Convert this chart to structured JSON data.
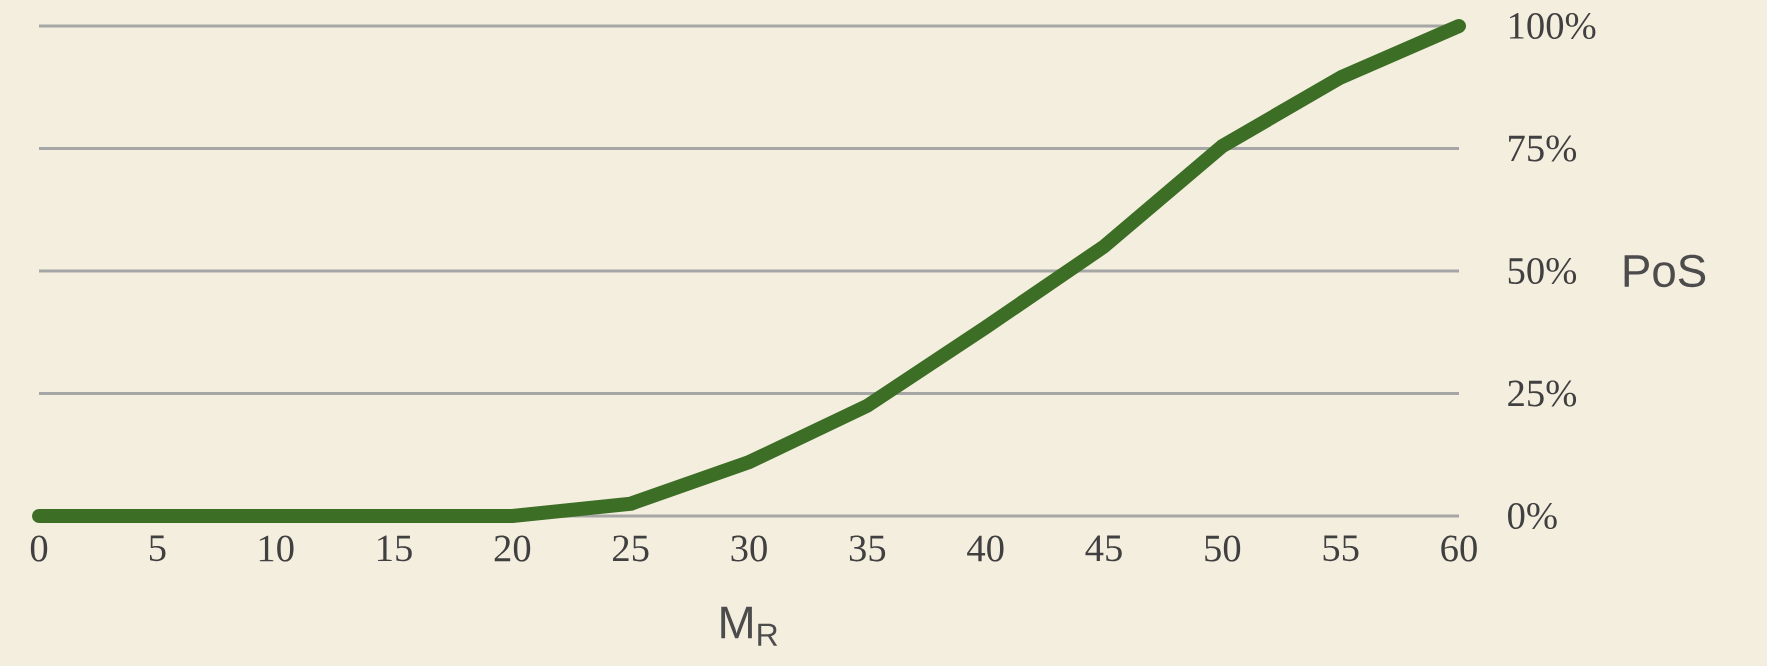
{
  "chart_data": {
    "type": "line",
    "xlabel": "M$_{R}$",
    "ylabel": "PoS",
    "x": [
      0,
      5,
      10,
      15,
      20,
      25,
      30,
      35,
      40,
      45,
      50,
      55,
      60
    ],
    "series": [
      {
        "color": "#3d6e26",
        "values": [
          0,
          0,
          0,
          0,
          0,
          2.5,
          11,
          22.5,
          38.5,
          55,
          75.5,
          89.5,
          100
        ]
      }
    ],
    "xlim": [
      0,
      60
    ],
    "xticks": [
      0,
      5,
      10,
      15,
      20,
      25,
      30,
      35,
      40,
      45,
      50,
      55,
      60
    ],
    "ylim": [
      0,
      100
    ],
    "yticks": [
      {
        "value": 0,
        "label": "0%"
      },
      {
        "value": 25,
        "label": "25%"
      },
      {
        "value": 50,
        "label": "50%"
      },
      {
        "value": 75,
        "label": "75%"
      },
      {
        "value": 100,
        "label": "100%"
      }
    ],
    "grid": "y",
    "marker": "none",
    "line_style": "solid"
  }
}
